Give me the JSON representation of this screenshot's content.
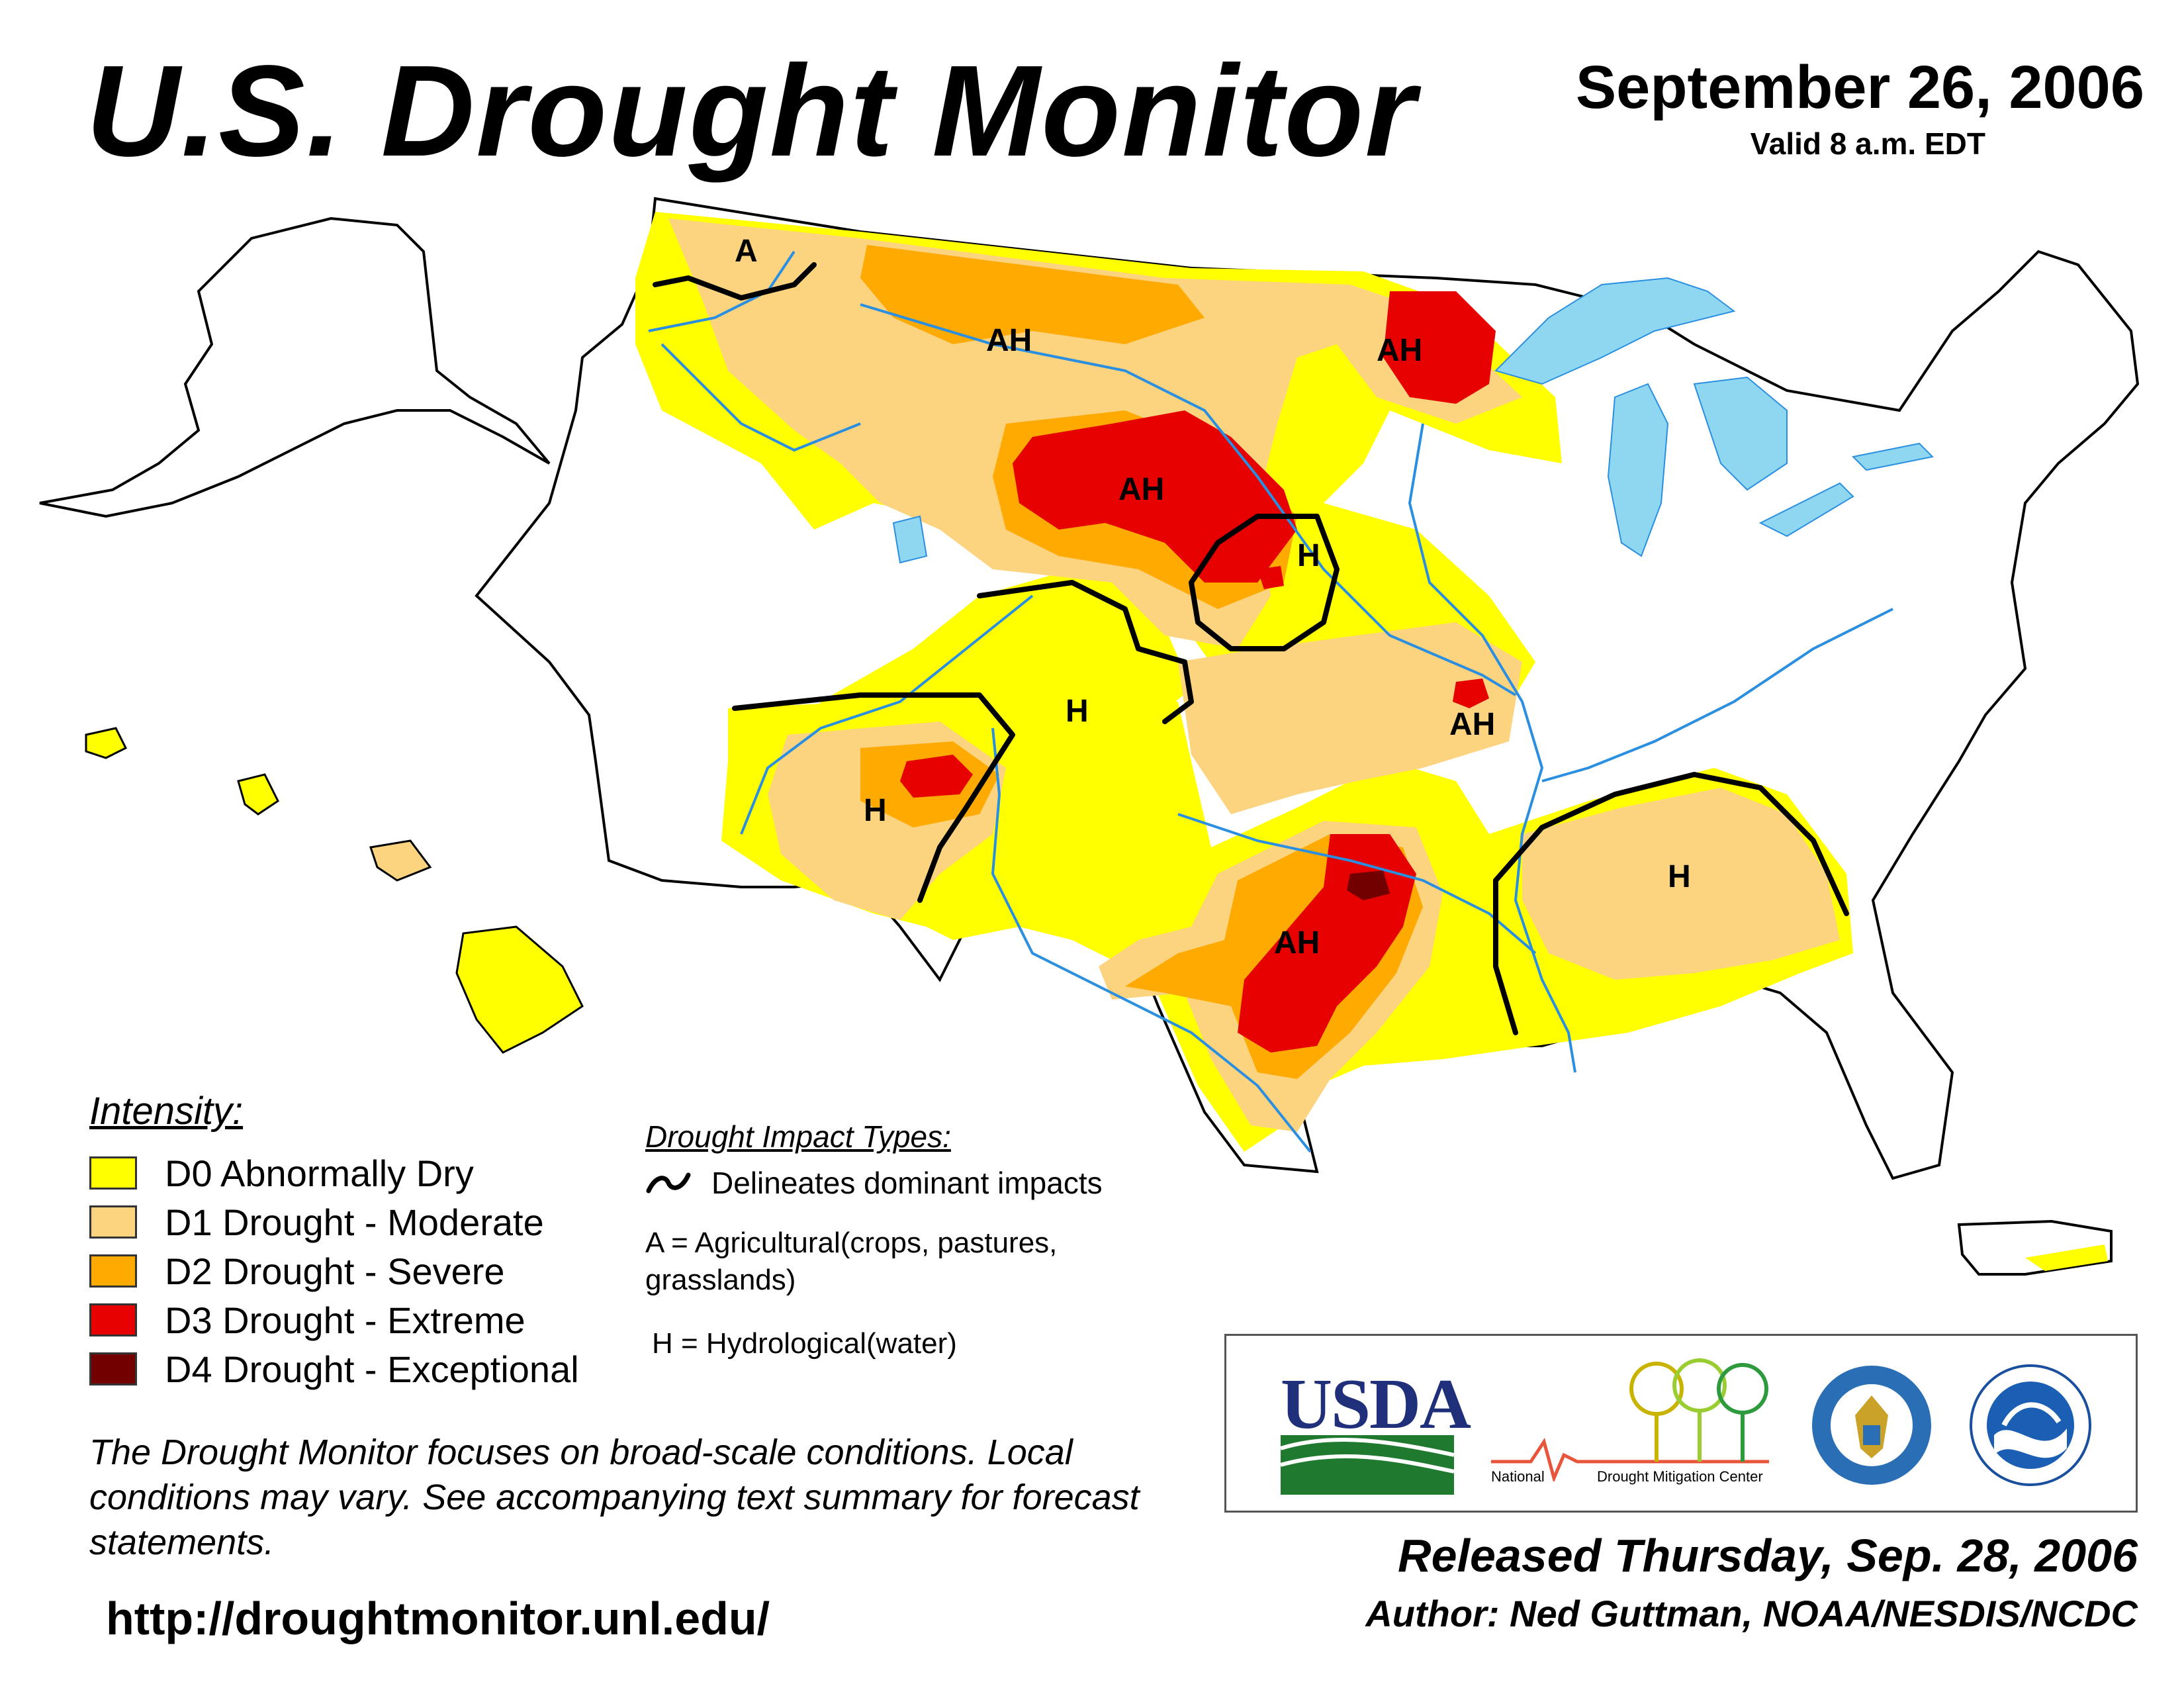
{
  "header": {
    "title": "U.S. Drought Monitor",
    "date": "September 26, 2006",
    "valid": "Valid 8 a.m. EDT"
  },
  "colors": {
    "d0": "#ffff00",
    "d1": "#fcd37f",
    "d2": "#ffaa00",
    "d3": "#e60000",
    "d4": "#730000",
    "water": "#8fd7f0",
    "river": "#2a8fe0"
  },
  "legend": {
    "heading": "Intensity:",
    "items": [
      {
        "label": "D0 Abnormally Dry",
        "color": "#ffff00"
      },
      {
        "label": "D1 Drought - Moderate",
        "color": "#fcd37f"
      },
      {
        "label": "D2 Drought - Severe",
        "color": "#ffaa00"
      },
      {
        "label": "D3 Drought - Extreme",
        "color": "#e60000"
      },
      {
        "label": "D4 Drought - Exceptional",
        "color": "#730000"
      }
    ]
  },
  "impacts": {
    "heading": "Drought Impact Types:",
    "line_label": "Delineates dominant impacts",
    "a_label": "A = Agricultural(crops, pastures, grasslands)",
    "h_label": "H = Hydrological(water)"
  },
  "map_labels": {
    "pnw": "A",
    "montana": "AH",
    "minnesota": "AH",
    "dakotas": "AH",
    "nebraska": "H",
    "colorado": "H",
    "arizona": "H",
    "missouri": "AH",
    "texas": "AH",
    "southeast": "H"
  },
  "note": "The Drought Monitor focuses on broad-scale conditions. Local conditions may vary. See accompanying text summary for forecast statements.",
  "url": "http://droughtmonitor.unl.edu/",
  "logos": {
    "usda": "USDA",
    "ndmc_prefix": "National",
    "ndmc_name": "Drought Mitigation Center"
  },
  "footer": {
    "released": "Released Thursday, Sep. 28, 2006",
    "author": "Author: Ned Guttman, NOAA/NESDIS/NCDC"
  }
}
